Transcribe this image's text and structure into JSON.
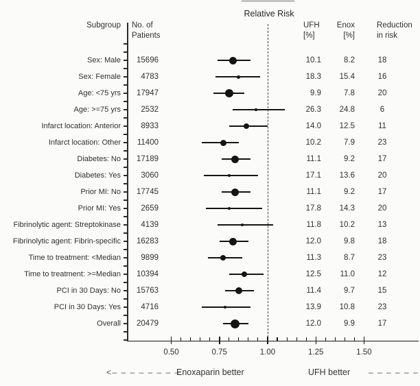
{
  "chart_data": {
    "type": "scatter",
    "subtype": "forest-plot",
    "title": "Relative Risk",
    "columns": {
      "subgroup": "Subgroup",
      "patients": "No. of\nPatients",
      "ufh": "UFH\n[%]",
      "enox": "Enox\n[%]",
      "reduction": "Reduction\nin risk"
    },
    "x_axis": {
      "major_ticks": [
        0.5,
        0.75,
        1.0,
        1.25,
        1.5
      ],
      "tick_labels": [
        "0.50",
        "0.75",
        "1.00",
        "1.25",
        "1.50"
      ],
      "minor_tick_step": 0.05,
      "shown_range": [
        0.5,
        1.5
      ],
      "reference_line": 1.0,
      "grid": false
    },
    "annotations": {
      "left_arrow": "<– – – – – – – –",
      "left_label": "Enoxaparin better",
      "right_label": "UFH better",
      "right_arrow": "– – – – – – –>"
    },
    "rows": [
      {
        "subgroup": "Sex: Male",
        "n": "15696",
        "rr": 0.82,
        "ci_low": 0.74,
        "ci_high": 0.91,
        "ufh": "10.1",
        "enox": "8.2",
        "reduction": "18",
        "marker_size": 11
      },
      {
        "subgroup": "Sex: Female",
        "n": "4783",
        "rr": 0.85,
        "ci_low": 0.73,
        "ci_high": 0.96,
        "ufh": "18.3",
        "enox": "15.4",
        "reduction": "16",
        "marker_size": 5
      },
      {
        "subgroup": "Age: <75 yrs",
        "n": "17947",
        "rr": 0.8,
        "ci_low": 0.72,
        "ci_high": 0.88,
        "ufh": "9.9",
        "enox": "7.8",
        "reduction": "20",
        "marker_size": 12
      },
      {
        "subgroup": "Age: >=75 yrs",
        "n": "2532",
        "rr": 0.94,
        "ci_low": 0.82,
        "ci_high": 1.09,
        "ufh": "26.3",
        "enox": "24.8",
        "reduction": "6",
        "marker_size": 3.5
      },
      {
        "subgroup": "Infarct location: Anterior",
        "n": "8933",
        "rr": 0.89,
        "ci_low": 0.8,
        "ci_high": 1.0,
        "ufh": "14.0",
        "enox": "12.5",
        "reduction": "11",
        "marker_size": 8
      },
      {
        "subgroup": "Infarct location: Other",
        "n": "11400",
        "rr": 0.77,
        "ci_low": 0.66,
        "ci_high": 0.85,
        "ufh": "10.2",
        "enox": "7.9",
        "reduction": "23",
        "marker_size": 9
      },
      {
        "subgroup": "Diabetes: No",
        "n": "17189",
        "rr": 0.83,
        "ci_low": 0.76,
        "ci_high": 0.91,
        "ufh": "11.1",
        "enox": "9.2",
        "reduction": "17",
        "marker_size": 11
      },
      {
        "subgroup": "Diabetes: Yes",
        "n": "3060",
        "rr": 0.8,
        "ci_low": 0.67,
        "ci_high": 0.95,
        "ufh": "17.1",
        "enox": "13.6",
        "reduction": "20",
        "marker_size": 4
      },
      {
        "subgroup": "Prior MI: No",
        "n": "17745",
        "rr": 0.83,
        "ci_low": 0.76,
        "ci_high": 0.91,
        "ufh": "11.1",
        "enox": "9.2",
        "reduction": "17",
        "marker_size": 11
      },
      {
        "subgroup": "Prior MI: Yes",
        "n": "2659",
        "rr": 0.8,
        "ci_low": 0.68,
        "ci_high": 0.97,
        "ufh": "17.8",
        "enox": "14.3",
        "reduction": "20",
        "marker_size": 4
      },
      {
        "subgroup": "Fibrinolytic agent: Streptokinase",
        "n": "4139",
        "rr": 0.87,
        "ci_low": 0.74,
        "ci_high": 1.03,
        "ufh": "11.8",
        "enox": "10.2",
        "reduction": "13",
        "marker_size": 4
      },
      {
        "subgroup": "Fibrinolytic agent: Fibrin-specific",
        "n": "16283",
        "rr": 0.82,
        "ci_low": 0.75,
        "ci_high": 0.9,
        "ufh": "12.0",
        "enox": "9.8",
        "reduction": "18",
        "marker_size": 11
      },
      {
        "subgroup": "Time to treatment: <Median",
        "n": "9899",
        "rr": 0.77,
        "ci_low": 0.69,
        "ci_high": 0.87,
        "ufh": "11.3",
        "enox": "8.7",
        "reduction": "23",
        "marker_size": 8
      },
      {
        "subgroup": "Time to treatment: >=Median",
        "n": "10394",
        "rr": 0.88,
        "ci_low": 0.8,
        "ci_high": 0.98,
        "ufh": "12.5",
        "enox": "11.0",
        "reduction": "12",
        "marker_size": 8
      },
      {
        "subgroup": "PCI in 30 Days: No",
        "n": "15763",
        "rr": 0.85,
        "ci_low": 0.78,
        "ci_high": 0.93,
        "ufh": "11.4",
        "enox": "9.7",
        "reduction": "15",
        "marker_size": 10
      },
      {
        "subgroup": "PCI in 30 Days: Yes",
        "n": "4716",
        "rr": 0.78,
        "ci_low": 0.66,
        "ci_high": 0.91,
        "ufh": "13.9",
        "enox": "10.8",
        "reduction": "23",
        "marker_size": 4.5
      },
      {
        "subgroup": "Overall",
        "n": "20479",
        "rr": 0.83,
        "ci_low": 0.77,
        "ci_high": 0.9,
        "ufh": "12.0",
        "enox": "9.9",
        "reduction": "17",
        "marker_size": 13
      }
    ]
  },
  "colors": {
    "line": "#161616",
    "marker": "#141414",
    "text": "#2f2f2f",
    "background": "#fbfbfa",
    "arrow": "#4a4a4a"
  }
}
